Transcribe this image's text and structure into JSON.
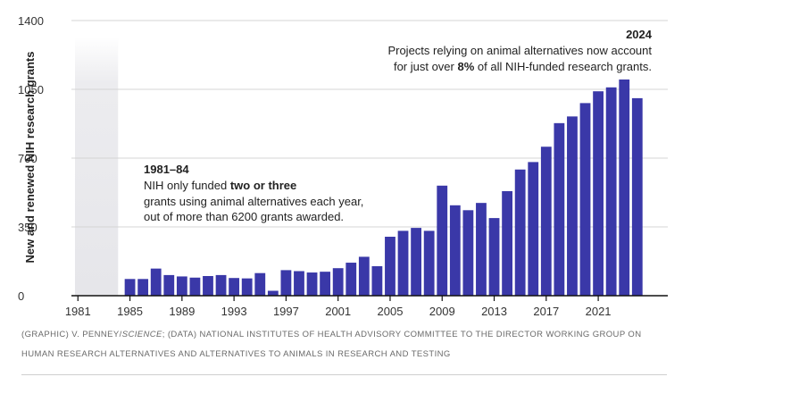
{
  "chart_data": {
    "type": "bar",
    "ylabel": "New and renewed NIH research grants",
    "ylim": [
      0,
      1400
    ],
    "yticks": [
      0,
      350,
      700,
      1050,
      1400
    ],
    "xticks": [
      1981,
      1985,
      1989,
      1993,
      1997,
      2001,
      2005,
      2009,
      2013,
      2017,
      2021
    ],
    "grid": "horizontal",
    "bar_color": "#3a38a8",
    "shaded_region": {
      "from": 1981,
      "to": 1984
    },
    "x": [
      1985,
      1986,
      1987,
      1988,
      1989,
      1990,
      1991,
      1992,
      1993,
      1994,
      1995,
      1996,
      1997,
      1998,
      1999,
      2000,
      2001,
      2002,
      2003,
      2004,
      2005,
      2006,
      2007,
      2008,
      2009,
      2010,
      2011,
      2012,
      2013,
      2014,
      2015,
      2016,
      2017,
      2018,
      2019,
      2020,
      2021,
      2022,
      2023,
      2024
    ],
    "values": [
      85,
      85,
      138,
      105,
      98,
      92,
      100,
      105,
      90,
      88,
      115,
      25,
      130,
      125,
      118,
      122,
      140,
      168,
      198,
      150,
      300,
      330,
      345,
      330,
      560,
      460,
      435,
      472,
      395,
      532,
      642,
      680,
      758,
      878,
      912,
      980,
      1040,
      1060,
      1100,
      1005
    ]
  },
  "annotations": {
    "left": {
      "heading": "1981–84",
      "line1_pre": "NIH only funded ",
      "line1_bold": "two or three",
      "line2": "grants using animal alternatives each year,",
      "line3": "out of more than 6200 grants awarded."
    },
    "right": {
      "heading": "2024",
      "line1": "Projects relying on animal alternatives now account",
      "line2_pre": "for just over ",
      "line2_bold": "8%",
      "line2_post": " of all NIH-funded research grants."
    }
  },
  "credit": {
    "pre": "(GRAPHIC) V. PENNEY/",
    "italic": "SCIENCE",
    "post": "; (DATA) NATIONAL INSTITUTES OF HEALTH ADVISORY COMMITTEE TO THE DIRECTOR WORKING GROUP ON HUMAN RESEARCH ALTERNATIVES AND ALTERNATIVES TO ANIMALS IN RESEARCH AND TESTING"
  }
}
